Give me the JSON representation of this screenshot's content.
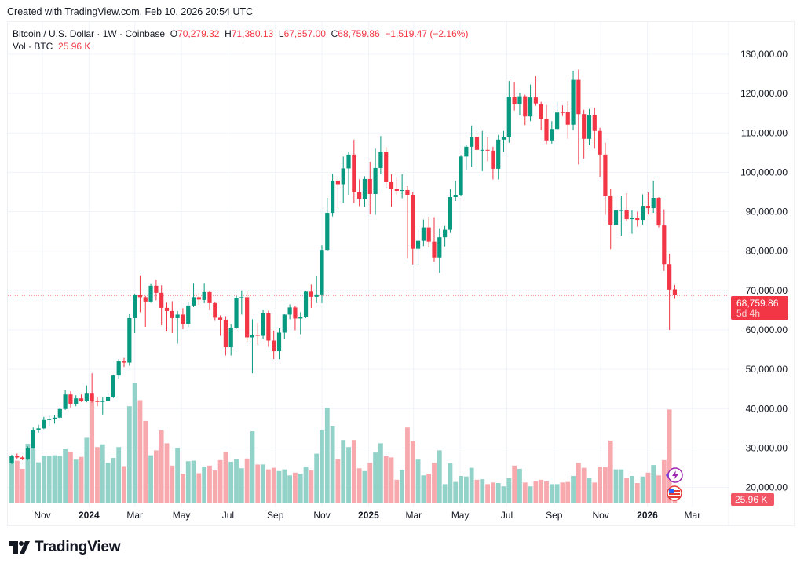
{
  "credit": "Created with TradingView.com, Feb 10, 2026 20:54 UTC",
  "legend": {
    "symbol": "Bitcoin / U.S. Dollar · 1W · Coinbase",
    "o_label": "O",
    "o": "70,279.32",
    "h_label": "H",
    "h": "71,380.13",
    "l_label": "L",
    "l": "67,857.00",
    "c_label": "C",
    "c": "68,759.86",
    "change": "−1,519.47 (−2.16%)",
    "vol_label": "Vol · BTC",
    "vol": "25.96 K"
  },
  "badges": {
    "price": "68,759.86",
    "countdown": "5d 4h",
    "volume": "25.96 K"
  },
  "logo": {
    "text": "TradingView"
  },
  "colors": {
    "up": "#089981",
    "down": "#f23645",
    "vol_up": "#92d2c8",
    "vol_down": "#f7a9ae",
    "grid": "#f0f3fa",
    "accent_icon": "#9c27b0"
  },
  "icons": [
    "lightning-event-icon",
    "us-flag-event-icon"
  ],
  "chart_data": {
    "type": "candlestick",
    "title": "Bitcoin / U.S. Dollar · 1W · Coinbase",
    "interval": "1W",
    "ylim": [
      16000,
      138000
    ],
    "y_ticks": [
      {
        "value": 130000,
        "label": "130,000.00"
      },
      {
        "value": 120000,
        "label": "120,000.00"
      },
      {
        "value": 110000,
        "label": "110,000.00"
      },
      {
        "value": 100000,
        "label": "100,000.00"
      },
      {
        "value": 90000,
        "label": "90,000.00"
      },
      {
        "value": 80000,
        "label": "80,000.00"
      },
      {
        "value": 70000,
        "label": "70,000.00"
      },
      {
        "value": 60000,
        "label": "60,000.00"
      },
      {
        "value": 50000,
        "label": "50,000.00"
      },
      {
        "value": 40000,
        "label": "40,000.00"
      },
      {
        "value": 30000,
        "label": "30,000.00"
      },
      {
        "value": 20000,
        "label": "20,000.00"
      }
    ],
    "x_ticks": [
      {
        "date": "2023-11-01",
        "label": "Nov",
        "bold": false
      },
      {
        "date": "2024-01-01",
        "label": "2024",
        "bold": true
      },
      {
        "date": "2024-03-01",
        "label": "Mar",
        "bold": false
      },
      {
        "date": "2024-05-01",
        "label": "May",
        "bold": false
      },
      {
        "date": "2024-07-01",
        "label": "Jul",
        "bold": false
      },
      {
        "date": "2024-09-01",
        "label": "Sep",
        "bold": false
      },
      {
        "date": "2024-11-01",
        "label": "Nov",
        "bold": false
      },
      {
        "date": "2025-01-01",
        "label": "2025",
        "bold": true
      },
      {
        "date": "2025-03-01",
        "label": "Mar",
        "bold": false
      },
      {
        "date": "2025-05-01",
        "label": "May",
        "bold": false
      },
      {
        "date": "2025-07-01",
        "label": "Jul",
        "bold": false
      },
      {
        "date": "2025-09-01",
        "label": "Sep",
        "bold": false
      },
      {
        "date": "2025-11-01",
        "label": "Nov",
        "bold": false
      },
      {
        "date": "2026-01-01",
        "label": "2026",
        "bold": true
      },
      {
        "date": "2026-03-01",
        "label": "Mar",
        "bold": false
      }
    ],
    "last_price": 68759.86,
    "grid": true,
    "volume_unit": "K",
    "columns": [
      "date",
      "open",
      "high",
      "low",
      "close",
      "volume"
    ],
    "candles": [
      [
        "2023-09-25",
        26200,
        28300,
        25900,
        27900,
        85
      ],
      [
        "2023-10-02",
        27900,
        28600,
        27200,
        27600,
        77
      ],
      [
        "2023-10-09",
        27600,
        28100,
        26900,
        27200,
        62
      ],
      [
        "2023-10-16",
        27200,
        30400,
        26900,
        29900,
        108
      ],
      [
        "2023-10-23",
        29900,
        35200,
        29800,
        34500,
        100
      ],
      [
        "2023-10-30",
        34500,
        35900,
        33900,
        35000,
        74
      ],
      [
        "2023-11-06",
        35000,
        37900,
        34800,
        37100,
        86
      ],
      [
        "2023-11-13",
        37100,
        38400,
        35500,
        37300,
        86
      ],
      [
        "2023-11-20",
        37300,
        38400,
        36200,
        37700,
        87
      ],
      [
        "2023-11-27",
        37700,
        40200,
        37500,
        39900,
        86
      ],
      [
        "2023-12-04",
        39900,
        44700,
        39700,
        43600,
        98
      ],
      [
        "2023-12-11",
        43600,
        44400,
        40300,
        41200,
        93
      ],
      [
        "2023-12-18",
        41200,
        43400,
        40600,
        42600,
        79
      ],
      [
        "2023-12-25",
        42600,
        43600,
        41700,
        41900,
        84
      ],
      [
        "2024-01-01",
        41900,
        45900,
        41600,
        43800,
        119
      ],
      [
        "2024-01-08",
        43800,
        49000,
        41500,
        42000,
        188
      ],
      [
        "2024-01-15",
        42000,
        43000,
        40600,
        41700,
        102
      ],
      [
        "2024-01-22",
        41700,
        42800,
        38500,
        42000,
        107
      ],
      [
        "2024-01-29",
        42000,
        43900,
        41800,
        42900,
        73
      ],
      [
        "2024-02-05",
        42900,
        48600,
        42700,
        48400,
        82
      ],
      [
        "2024-02-12",
        48400,
        52600,
        47600,
        52000,
        102
      ],
      [
        "2024-02-19",
        52000,
        52900,
        50600,
        51700,
        67
      ],
      [
        "2024-02-26",
        51700,
        64000,
        50900,
        63000,
        177
      ],
      [
        "2024-03-04",
        63000,
        69200,
        59200,
        68800,
        219
      ],
      [
        "2024-03-11",
        68800,
        73800,
        64500,
        68300,
        188
      ],
      [
        "2024-03-18",
        68300,
        68600,
        60800,
        67200,
        150
      ],
      [
        "2024-03-25",
        67200,
        71800,
        66900,
        71200,
        87
      ],
      [
        "2024-04-01",
        71200,
        72700,
        67500,
        69400,
        96
      ],
      [
        "2024-04-08",
        69400,
        71300,
        61200,
        65600,
        133
      ],
      [
        "2024-04-15",
        65600,
        66900,
        59600,
        64800,
        109
      ],
      [
        "2024-04-22",
        64800,
        67300,
        59200,
        63000,
        68
      ],
      [
        "2024-04-29",
        63000,
        64800,
        56500,
        63900,
        100
      ],
      [
        "2024-05-06",
        63900,
        65500,
        60200,
        61500,
        53
      ],
      [
        "2024-05-13",
        61500,
        67000,
        60700,
        66200,
        76
      ],
      [
        "2024-05-20",
        66200,
        71900,
        65800,
        68300,
        77
      ],
      [
        "2024-05-27",
        68300,
        69400,
        66400,
        67700,
        54
      ],
      [
        "2024-06-03",
        67600,
        71900,
        66800,
        69600,
        66
      ],
      [
        "2024-06-10",
        69600,
        70000,
        65000,
        66800,
        68
      ],
      [
        "2024-06-17",
        66800,
        67200,
        62300,
        63100,
        59
      ],
      [
        "2024-06-24",
        63100,
        63700,
        58500,
        62600,
        78
      ],
      [
        "2024-07-01",
        62600,
        63500,
        53500,
        55600,
        93
      ],
      [
        "2024-07-08",
        55600,
        61400,
        53500,
        60600,
        75
      ],
      [
        "2024-07-15",
        60600,
        68600,
        60300,
        68100,
        80
      ],
      [
        "2024-07-22",
        68100,
        70000,
        63900,
        68300,
        63
      ],
      [
        "2024-07-29",
        68300,
        70000,
        57000,
        58100,
        81
      ],
      [
        "2024-08-05",
        58100,
        62700,
        49000,
        58600,
        131
      ],
      [
        "2024-08-12",
        58700,
        61800,
        56200,
        58500,
        70
      ],
      [
        "2024-08-19",
        58500,
        65000,
        57800,
        64200,
        70
      ],
      [
        "2024-08-26",
        64200,
        64900,
        55700,
        57300,
        61
      ],
      [
        "2024-09-02",
        57300,
        59800,
        52600,
        54600,
        64
      ],
      [
        "2024-09-09",
        54600,
        60400,
        52600,
        59300,
        58
      ],
      [
        "2024-09-16",
        59300,
        64000,
        57600,
        63900,
        61
      ],
      [
        "2024-09-23",
        63900,
        66500,
        62700,
        65700,
        50
      ],
      [
        "2024-09-30",
        65700,
        66100,
        59900,
        62900,
        55
      ],
      [
        "2024-10-07",
        62900,
        64500,
        58900,
        63200,
        53
      ],
      [
        "2024-10-14",
        63200,
        69900,
        63000,
        69700,
        66
      ],
      [
        "2024-10-21",
        69700,
        71500,
        65600,
        68400,
        59
      ],
      [
        "2024-10-28",
        68400,
        73600,
        66800,
        69000,
        90
      ],
      [
        "2024-11-04",
        69000,
        81500,
        66800,
        80300,
        133
      ],
      [
        "2024-11-11",
        80300,
        93500,
        80100,
        89700,
        174
      ],
      [
        "2024-11-18",
        89700,
        99600,
        88800,
        97900,
        140
      ],
      [
        "2024-11-25",
        97900,
        98900,
        90800,
        97000,
        80
      ],
      [
        "2024-12-02",
        97000,
        104000,
        92200,
        101000,
        115
      ],
      [
        "2024-12-09",
        101000,
        105200,
        94300,
        104500,
        102
      ],
      [
        "2024-12-16",
        104500,
        108300,
        92200,
        94900,
        115
      ],
      [
        "2024-12-23",
        94900,
        98200,
        91400,
        93300,
        63
      ],
      [
        "2024-12-30",
        93300,
        99000,
        91300,
        98300,
        58
      ],
      [
        "2025-01-06",
        98300,
        102700,
        89300,
        94500,
        73
      ],
      [
        "2025-01-13",
        94500,
        106000,
        89200,
        101100,
        92
      ],
      [
        "2025-01-20",
        101100,
        109200,
        99500,
        105200,
        109
      ],
      [
        "2025-01-27",
        105200,
        106400,
        96100,
        97500,
        85
      ],
      [
        "2025-02-03",
        97500,
        99500,
        91200,
        95700,
        83
      ],
      [
        "2025-02-10",
        95800,
        98800,
        94300,
        95300,
        42
      ],
      [
        "2025-02-17",
        95300,
        99500,
        93400,
        95500,
        60
      ],
      [
        "2025-02-24",
        95500,
        96500,
        78100,
        94300,
        138
      ],
      [
        "2025-03-03",
        94300,
        95000,
        76600,
        80600,
        113
      ],
      [
        "2025-03-10",
        80600,
        85300,
        76600,
        82600,
        79
      ],
      [
        "2025-03-17",
        82600,
        88000,
        81300,
        86000,
        50
      ],
      [
        "2025-03-24",
        86000,
        88700,
        81000,
        82400,
        53
      ],
      [
        "2025-03-31",
        82400,
        88600,
        77300,
        78400,
        73
      ],
      [
        "2025-04-07",
        78400,
        85800,
        74500,
        83500,
        96
      ],
      [
        "2025-04-14",
        83500,
        86400,
        81200,
        85400,
        34
      ],
      [
        "2025-04-21",
        85400,
        95800,
        84600,
        93700,
        72
      ],
      [
        "2025-04-28",
        93700,
        97900,
        92700,
        94300,
        38
      ],
      [
        "2025-05-05",
        94300,
        104400,
        93900,
        104000,
        49
      ],
      [
        "2025-05-12",
        104000,
        107000,
        100700,
        106500,
        48
      ],
      [
        "2025-05-19",
        106500,
        111900,
        101400,
        109000,
        64
      ],
      [
        "2025-05-26",
        109000,
        110400,
        101400,
        105700,
        42
      ],
      [
        "2025-06-02",
        105600,
        110500,
        100300,
        105700,
        43
      ],
      [
        "2025-06-09",
        105700,
        108900,
        102800,
        105600,
        34
      ],
      [
        "2025-06-16",
        105500,
        106500,
        98200,
        100900,
        37
      ],
      [
        "2025-06-23",
        100900,
        109500,
        98200,
        108300,
        36
      ],
      [
        "2025-06-30",
        108300,
        110500,
        105200,
        108900,
        30
      ],
      [
        "2025-07-07",
        108900,
        123200,
        107500,
        119200,
        45
      ],
      [
        "2025-07-14",
        119200,
        123000,
        115700,
        117300,
        68
      ],
      [
        "2025-07-21",
        117300,
        120200,
        114500,
        119300,
        62
      ],
      [
        "2025-07-28",
        119300,
        119700,
        112000,
        114200,
        37
      ],
      [
        "2025-08-04",
        114200,
        122300,
        113000,
        119000,
        30
      ],
      [
        "2025-08-11",
        119000,
        124400,
        116900,
        117500,
        39
      ],
      [
        "2025-08-18",
        117300,
        117900,
        110700,
        113500,
        42
      ],
      [
        "2025-08-25",
        113500,
        117100,
        107200,
        108100,
        39
      ],
      [
        "2025-09-01",
        108100,
        113000,
        107300,
        111000,
        34
      ],
      [
        "2025-09-08",
        111000,
        117900,
        110700,
        115200,
        34
      ],
      [
        "2025-09-15",
        115300,
        117000,
        114300,
        115100,
        37
      ],
      [
        "2025-09-22",
        115300,
        118000,
        108600,
        112100,
        38
      ],
      [
        "2025-09-29",
        112100,
        125800,
        110700,
        123500,
        49
      ],
      [
        "2025-10-06",
        123500,
        126100,
        102000,
        114800,
        73
      ],
      [
        "2025-10-13",
        114800,
        115900,
        103500,
        108500,
        64
      ],
      [
        "2025-10-20",
        108500,
        116100,
        106900,
        114600,
        46
      ],
      [
        "2025-10-27",
        114600,
        116400,
        106000,
        110500,
        37
      ],
      [
        "2025-11-03",
        110500,
        111300,
        98900,
        104500,
        66
      ],
      [
        "2025-11-10",
        104500,
        107500,
        89200,
        94100,
        65
      ],
      [
        "2025-11-17",
        94100,
        95900,
        80500,
        86700,
        114
      ],
      [
        "2025-11-24",
        86700,
        93000,
        83800,
        90300,
        61
      ],
      [
        "2025-12-01",
        90300,
        94100,
        83900,
        90400,
        61
      ],
      [
        "2025-12-08",
        90300,
        94700,
        87600,
        88100,
        46
      ],
      [
        "2025-12-15",
        88100,
        90500,
        84400,
        88500,
        49
      ],
      [
        "2025-12-22",
        88500,
        90000,
        86200,
        87900,
        36
      ],
      [
        "2025-12-29",
        87900,
        94400,
        86700,
        91500,
        48
      ],
      [
        "2026-01-05",
        91500,
        94900,
        89300,
        90900,
        55
      ],
      [
        "2026-01-12",
        90900,
        97900,
        89700,
        93500,
        69
      ],
      [
        "2026-01-19",
        93500,
        93700,
        86000,
        86500,
        50
      ],
      [
        "2026-01-26",
        86500,
        90600,
        75000,
        76700,
        78
      ],
      [
        "2026-02-02",
        76700,
        79300,
        60000,
        70200,
        171
      ],
      [
        "2026-02-09",
        70279.32,
        71380.13,
        67857.0,
        68759.86,
        25.96
      ]
    ]
  }
}
